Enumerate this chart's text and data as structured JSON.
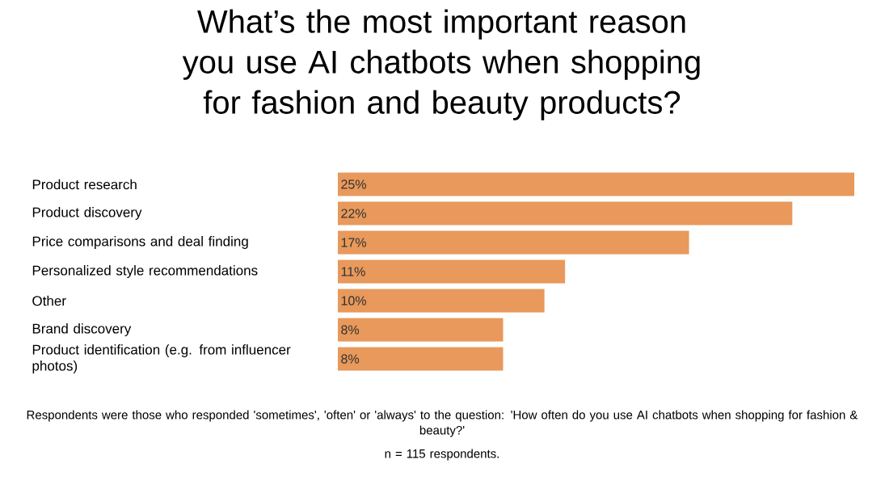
{
  "chart_data": {
    "type": "bar",
    "orientation": "horizontal",
    "title": "What’s the most important reason you use AI chatbots when shopping for fashion and beauty products?",
    "categories": [
      "Product research",
      "Product discovery",
      "Price comparisons and deal finding",
      "Personalized style recommendations",
      "Other",
      "Brand discovery",
      "Product identification (e.g. from influencer photos)"
    ],
    "values": [
      25,
      22,
      17,
      11,
      10,
      8,
      8
    ],
    "value_labels": [
      "25%",
      "22%",
      "17%",
      "11%",
      "10%",
      "8%",
      "8%"
    ],
    "color": "#e8995b",
    "annotations": [
      "Respondents were those who responded 'sometimes', 'often' or 'always' to the question: 'How often do you use AI chatbots when shopping for fashion & beauty?'",
      "n = 115 respondents."
    ]
  }
}
